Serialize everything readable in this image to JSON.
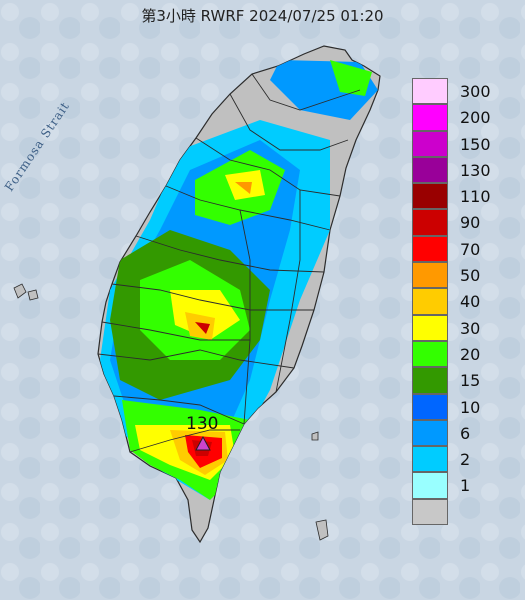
{
  "title": "第3小時  RWRF 2024/07/25 01:20",
  "strait_label": "Formosa Strait",
  "peak_marker": {
    "label": "130",
    "color": "#cc44cc",
    "icon": "triangle-marker-icon"
  },
  "legend": {
    "items": [
      {
        "label": "300",
        "color": "#ffccff"
      },
      {
        "label": "200",
        "color": "#ff00ff"
      },
      {
        "label": "150",
        "color": "#cc00cc"
      },
      {
        "label": "130",
        "color": "#990099"
      },
      {
        "label": "110",
        "color": "#990000"
      },
      {
        "label": "90",
        "color": "#cc0000"
      },
      {
        "label": "70",
        "color": "#ff0000"
      },
      {
        "label": "50",
        "color": "#ff9900"
      },
      {
        "label": "40",
        "color": "#ffcc00"
      },
      {
        "label": "30",
        "color": "#ffff00"
      },
      {
        "label": "20",
        "color": "#33ff00"
      },
      {
        "label": "15",
        "color": "#339900"
      },
      {
        "label": "10",
        "color": "#0066ff"
      },
      {
        "label": "6",
        "color": "#0099ff"
      },
      {
        "label": "2",
        "color": "#00ccff"
      },
      {
        "label": "1",
        "color": "#99ffff"
      },
      {
        "label": "",
        "color": "#c8c8c8"
      }
    ]
  },
  "colors": {
    "sea": "#c9d6e3",
    "land_no_rain": "#c0c0c0",
    "boundary": "#2c2c2c"
  }
}
